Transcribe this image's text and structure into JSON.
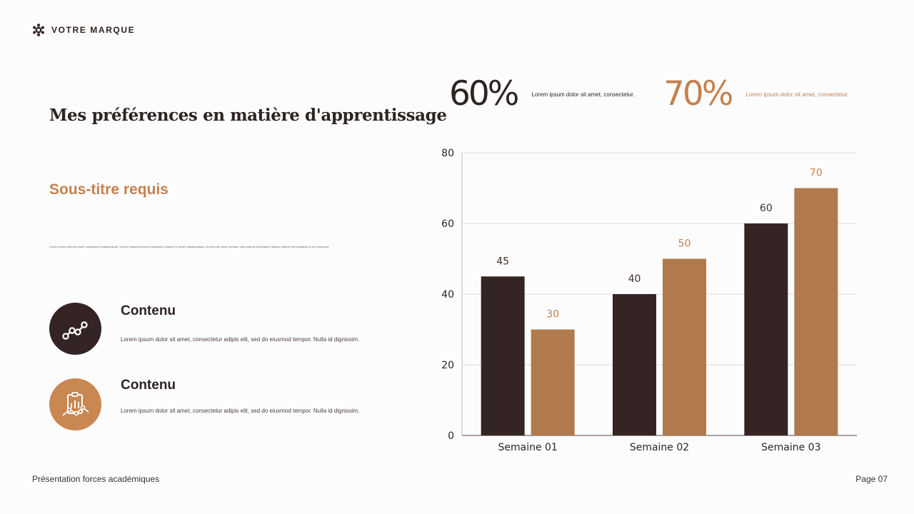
{
  "brand": {
    "name": "VOTRE MARQUE",
    "logo_icon": "gear-atom-icon"
  },
  "title": "Mes préférences en matière d'apprentissage",
  "subtitle": "Sous-titre requis",
  "intro_text": "Lorem ipsum dolor sit amet, consectetur adipiscing elit, sed do eiusmod tempor incididunt ut labore et dolore magna aliqua. Ut enim ad minim veniam, quis nostrud exercitation ullamco laboris nisi ut aliquip ex ea commodo.",
  "features": [
    {
      "heading": "Contenu",
      "body": "Lorem ipsum dolor sit amet, consectetur adipis elit, sed do eiusmod tempor. Nulla id dignissim.",
      "icon": "trend-line-icon",
      "color": "#342524"
    },
    {
      "heading": "Contenu",
      "body": "Lorem ipsum dolor sit amet, consectetur adipis elit, sed do eiusmod tempor. Nulla id dignissim.",
      "icon": "clipboard-chart-icon",
      "color": "#c98752"
    }
  ],
  "stats": [
    {
      "value": "60%",
      "label": "Lorem ipsum dolor sit amet, consectetur.",
      "color": "#2e2422"
    },
    {
      "value": "70%",
      "label": "Lorem ipsum dolor sit amet, consectetur.",
      "color": "#c4814f"
    }
  ],
  "chart_data": {
    "type": "bar",
    "categories": [
      "Semaine 01",
      "Semaine 02",
      "Semaine 03"
    ],
    "series": [
      {
        "values": [
          45,
          40,
          60
        ],
        "color": "#342524"
      },
      {
        "values": [
          30,
          50,
          70
        ],
        "color": "#b07a4c"
      }
    ],
    "ylim": [
      0,
      80
    ],
    "yticks": [
      0,
      20,
      40,
      60,
      80
    ],
    "grid": true,
    "data_labels": true,
    "legend": "none"
  },
  "footer": {
    "left": "Présentation forces académiques",
    "right": "Page 07"
  }
}
